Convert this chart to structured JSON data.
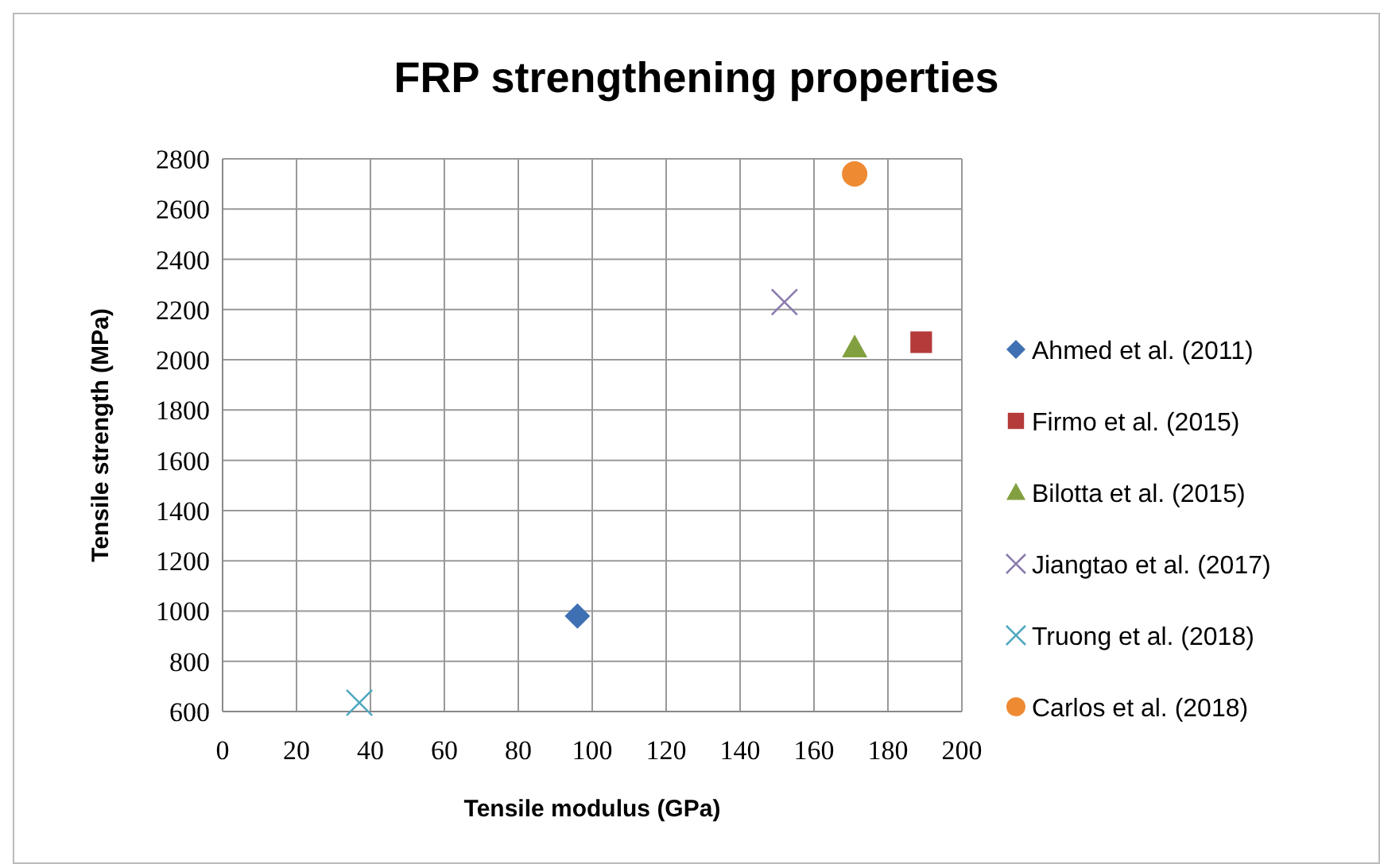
{
  "chart_data": {
    "type": "scatter",
    "title": "FRP strengthening properties",
    "xlabel": "Tensile modulus (GPa)",
    "ylabel": "Tensile strength (MPa)",
    "xlim": [
      0,
      200
    ],
    "xticks": [
      0,
      20,
      40,
      60,
      80,
      100,
      120,
      140,
      160,
      180,
      200
    ],
    "ylim": [
      600,
      2800
    ],
    "yticks": [
      600,
      800,
      1000,
      1200,
      1400,
      1600,
      1800,
      2000,
      2200,
      2400,
      2600,
      2800
    ],
    "grid": true,
    "legend": "right",
    "series": [
      {
        "name": "Ahmed et al. (2011)",
        "color": "#3f70b3",
        "marker": "diamond",
        "x": [
          96
        ],
        "values": [
          980
        ]
      },
      {
        "name": "Firmo et al. (2015)",
        "color": "#b53a3a",
        "marker": "square",
        "x": [
          189
        ],
        "values": [
          2070
        ]
      },
      {
        "name": "Bilotta et al. (2015)",
        "color": "#82a040",
        "marker": "triangle",
        "x": [
          171
        ],
        "values": [
          2050
        ]
      },
      {
        "name": "Jiangtao et al. (2017)",
        "color": "#8a7aae",
        "marker": "cross",
        "x": [
          152
        ],
        "values": [
          2230
        ]
      },
      {
        "name": "Truong et al. (2018)",
        "color": "#4fa8c0",
        "marker": "cross",
        "x": [
          37
        ],
        "values": [
          635
        ]
      },
      {
        "name": "Carlos et al. (2018)",
        "color": "#ee8a32",
        "marker": "circle",
        "x": [
          171
        ],
        "values": [
          2740
        ]
      }
    ]
  }
}
